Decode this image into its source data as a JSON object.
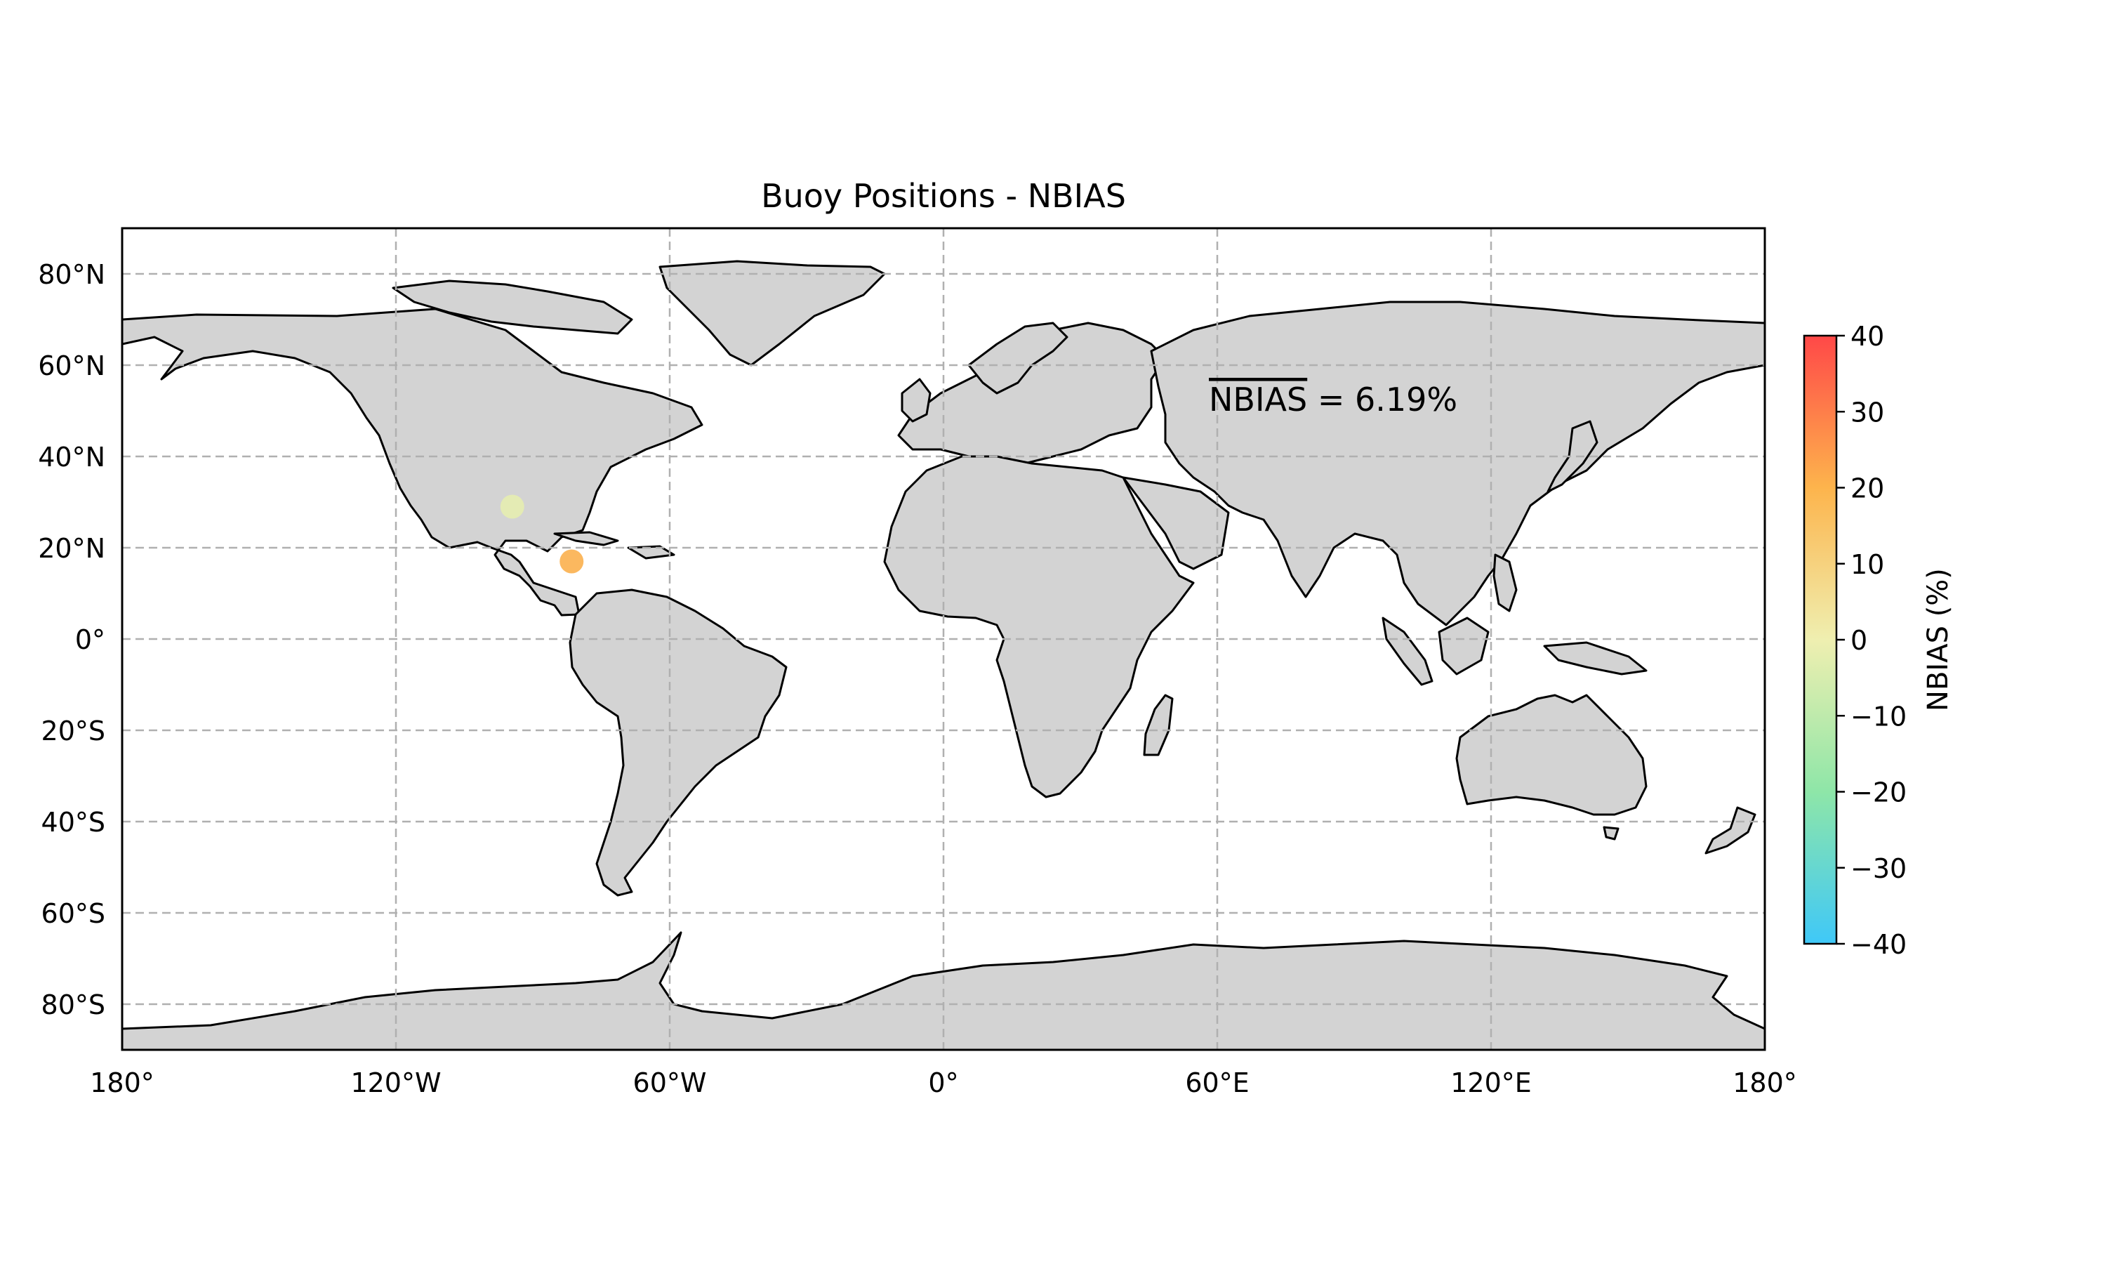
{
  "figure": {
    "title": "Buoy Positions - NBIAS",
    "annotation_label": "NBIAS",
    "annotation_value": " = 6.19%"
  },
  "map": {
    "projection": "plate-carree",
    "extent": {
      "lon": [
        -180,
        180
      ],
      "lat": [
        -90,
        90
      ]
    },
    "land_color": "#d3d3d3",
    "coast_color": "#000000",
    "gridlines": true,
    "grid_color": "#b0b0b0",
    "lon_ticks": [
      {
        "value": -180,
        "label": "180°"
      },
      {
        "value": -120,
        "label": "120°W"
      },
      {
        "value": -60,
        "label": "60°W"
      },
      {
        "value": 0,
        "label": "0°"
      },
      {
        "value": 60,
        "label": "60°E"
      },
      {
        "value": 120,
        "label": "120°E"
      },
      {
        "value": 180,
        "label": "180°"
      }
    ],
    "lat_ticks": [
      {
        "value": 80,
        "label": "80°N"
      },
      {
        "value": 60,
        "label": "60°N"
      },
      {
        "value": 40,
        "label": "40°N"
      },
      {
        "value": 20,
        "label": "20°N"
      },
      {
        "value": 0,
        "label": "0°"
      },
      {
        "value": -20,
        "label": "20°S"
      },
      {
        "value": -40,
        "label": "40°S"
      },
      {
        "value": -60,
        "label": "60°S"
      },
      {
        "value": -80,
        "label": "80°S"
      }
    ]
  },
  "chart_data": {
    "type": "scatter",
    "title": "Buoy Positions - NBIAS",
    "points": [
      {
        "lon": -94.5,
        "lat": 29.0,
        "value": -2,
        "color": "#e6edb0"
      },
      {
        "lon": -81.5,
        "lat": 17.0,
        "value": 19,
        "color": "#fbb04e"
      }
    ],
    "mean_nbias_percent": 6.19,
    "colorbar": {
      "label": "NBIAS (%)",
      "range": [
        -40,
        40
      ],
      "ticks": [
        {
          "value": 40,
          "label": "40"
        },
        {
          "value": 30,
          "label": "30"
        },
        {
          "value": 20,
          "label": "20"
        },
        {
          "value": 10,
          "label": "10"
        },
        {
          "value": 0,
          "label": "0"
        },
        {
          "value": -10,
          "label": "−10"
        },
        {
          "value": -20,
          "label": "−20"
        },
        {
          "value": -30,
          "label": "−30"
        },
        {
          "value": -40,
          "label": "−40"
        }
      ],
      "stops": [
        {
          "value": -40,
          "color": "#3fc8f8"
        },
        {
          "value": -20,
          "color": "#8ee6a8"
        },
        {
          "value": 0,
          "color": "#efefb0"
        },
        {
          "value": 20,
          "color": "#fdb44c"
        },
        {
          "value": 40,
          "color": "#ff4848"
        }
      ]
    }
  }
}
